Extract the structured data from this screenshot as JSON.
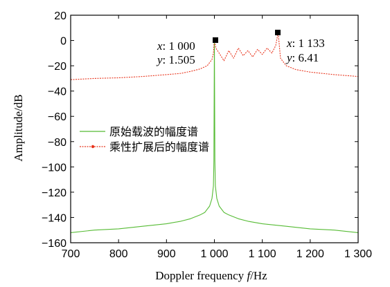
{
  "chart_data": {
    "type": "line",
    "xlabel_main": "Doppler frequency ",
    "xlabel_var": "f",
    "xlabel_unit": "/Hz",
    "ylabel": "Amplitude/dB",
    "xlim": [
      700,
      1300
    ],
    "ylim": [
      -160,
      20
    ],
    "x_ticks": [
      700,
      800,
      900,
      1000,
      1100,
      1200,
      1300
    ],
    "x_tick_labels": [
      "700",
      "800",
      "900",
      "1 000",
      "1 100",
      "1 200",
      "1 300"
    ],
    "y_ticks": [
      -160,
      -140,
      -120,
      -100,
      -80,
      -60,
      -40,
      -20,
      0,
      20
    ],
    "y_tick_labels": [
      "−160",
      "−140",
      "−120",
      "−100",
      "−80",
      "−60",
      "−40",
      "−20",
      "0",
      "20"
    ],
    "legend_position": "middle-left",
    "series": [
      {
        "name": "原始载波的幅度谱",
        "color": "#55bb33",
        "style": "solid",
        "x": [
          700,
          750,
          800,
          850,
          900,
          930,
          950,
          970,
          980,
          990,
          995,
          998,
          999,
          1000,
          1001,
          1002,
          1005,
          1010,
          1020,
          1030,
          1050,
          1070,
          1100,
          1150,
          1200,
          1250,
          1300
        ],
        "y": [
          -152,
          -150,
          -149,
          -147,
          -145,
          -143,
          -141,
          -138,
          -136,
          -131,
          -125,
          -115,
          -95,
          1.5,
          -95,
          -115,
          -125,
          -131,
          -136,
          -138,
          -141,
          -143,
          -145,
          -147,
          -149,
          -150,
          -152
        ]
      },
      {
        "name": "乘性扩展后的幅度谱",
        "color": "#e8341c",
        "style": "dashed",
        "x": [
          700,
          750,
          800,
          850,
          900,
          930,
          950,
          970,
          985,
          995,
          998,
          1000,
          1003,
          1010,
          1020,
          1030,
          1040,
          1050,
          1060,
          1070,
          1080,
          1090,
          1100,
          1110,
          1120,
          1128,
          1133,
          1138,
          1150,
          1170,
          1200,
          1250,
          1300
        ],
        "y": [
          -31,
          -30,
          -29.5,
          -28.5,
          -27,
          -26,
          -24.5,
          -22.5,
          -20,
          -15,
          -10,
          1.5,
          -6,
          -10,
          -16,
          -8,
          -14,
          -6,
          -12,
          -8,
          -13,
          -7,
          -11,
          -6,
          -10,
          -4,
          6.41,
          -14,
          -20,
          -23,
          -25,
          -27,
          -28.5
        ]
      }
    ],
    "annotations": [
      {
        "x": 1000,
        "y": 1.505,
        "x_label": "x",
        "x_value": ": 1 000",
        "y_label": "y",
        "y_value": ": 1.505"
      },
      {
        "x": 1133,
        "y": 6.41,
        "x_label": "x",
        "x_value": ": 1 133",
        "y_label": "y",
        "y_value": ": 6.41"
      }
    ]
  }
}
